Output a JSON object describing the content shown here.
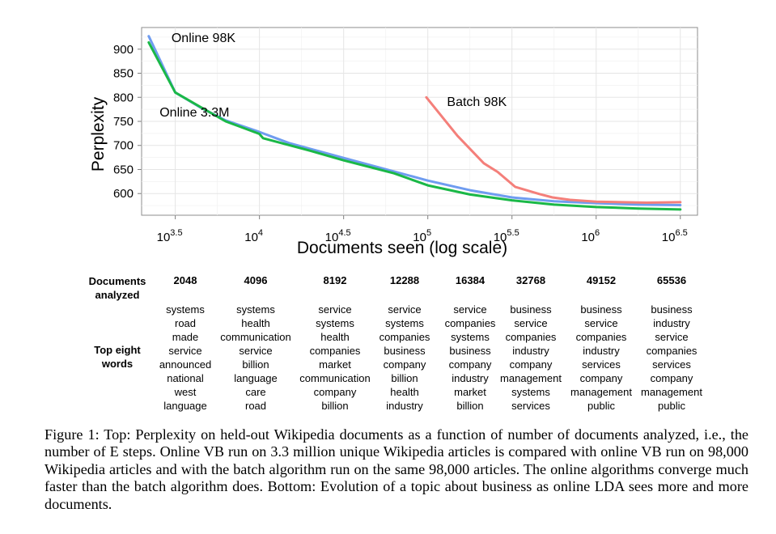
{
  "chart_data": {
    "type": "line",
    "xlabel": "Documents seen (log scale)",
    "ylabel": "Perplexity",
    "x_scale": "log10",
    "xlim": [
      1995,
      4000000
    ],
    "ylim": [
      555,
      945
    ],
    "x_ticks": [
      {
        "value": 3162,
        "base": "10",
        "exp": "3.5"
      },
      {
        "value": 10000,
        "base": "10",
        "exp": "4"
      },
      {
        "value": 31623,
        "base": "10",
        "exp": "4.5"
      },
      {
        "value": 100000,
        "base": "10",
        "exp": "5"
      },
      {
        "value": 316228,
        "base": "10",
        "exp": "5.5"
      },
      {
        "value": 1000000,
        "base": "10",
        "exp": "6"
      },
      {
        "value": 3162278,
        "base": "10",
        "exp": "6.5"
      }
    ],
    "y_ticks": [
      600,
      650,
      700,
      750,
      800,
      850,
      900
    ],
    "grid": true,
    "series": [
      {
        "name": "Online 98K",
        "color": "#6f9cf0",
        "x": [
          2200,
          3162,
          4500,
          6300,
          10000,
          15000,
          31623,
          63000,
          100000,
          178000,
          316228,
          562000,
          1000000,
          1778000,
          3162278
        ],
        "y": [
          927,
          810,
          778,
          752,
          728,
          705,
          674,
          646,
          627,
          607,
          592,
          584,
          580,
          577,
          576
        ]
      },
      {
        "name": "Online 3.3M",
        "color": "#1ab847",
        "x": [
          2200,
          3162,
          4500,
          6300,
          10000,
          10500,
          20000,
          31623,
          63000,
          100000,
          178000,
          316228,
          562000,
          1000000,
          1778000,
          3162278
        ],
        "y": [
          914,
          810,
          779,
          750,
          724,
          715,
          689,
          669,
          642,
          617,
          598,
          586,
          577,
          572,
          569,
          567
        ]
      },
      {
        "name": "Batch 98K",
        "color": "#f47f7a",
        "x": [
          98000,
          150000,
          215000,
          260000,
          330000,
          460000,
          550000,
          700000,
          1000000,
          2000000,
          3162278
        ],
        "y": [
          800,
          720,
          663,
          645,
          614,
          599,
          592,
          587,
          583,
          581,
          582
        ]
      }
    ],
    "annotations": [
      {
        "text": "Online 98K",
        "series": "Online 98K"
      },
      {
        "text": "Online 3.3M",
        "series": "Online 3.3M"
      },
      {
        "text": "Batch 98K",
        "series": "Batch 98K"
      }
    ]
  },
  "table": {
    "docs_label": [
      "Documents",
      "analyzed"
    ],
    "words_label": [
      "Top eight",
      "words"
    ],
    "columns": [
      {
        "docs": "2048",
        "words": [
          "systems",
          "road",
          "made",
          "service",
          "announced",
          "national",
          "west",
          "language"
        ]
      },
      {
        "docs": "4096",
        "words": [
          "systems",
          "health",
          "communication",
          "service",
          "billion",
          "language",
          "care",
          "road"
        ]
      },
      {
        "docs": "8192",
        "words": [
          "service",
          "systems",
          "health",
          "companies",
          "market",
          "communication",
          "company",
          "billion"
        ]
      },
      {
        "docs": "12288",
        "words": [
          "service",
          "systems",
          "companies",
          "business",
          "company",
          "billion",
          "health",
          "industry"
        ]
      },
      {
        "docs": "16384",
        "words": [
          "service",
          "companies",
          "systems",
          "business",
          "company",
          "industry",
          "market",
          "billion"
        ]
      },
      {
        "docs": "32768",
        "words": [
          "business",
          "service",
          "companies",
          "industry",
          "company",
          "management",
          "systems",
          "services"
        ]
      },
      {
        "docs": "49152",
        "words": [
          "business",
          "service",
          "companies",
          "industry",
          "services",
          "company",
          "management",
          "public"
        ]
      },
      {
        "docs": "65536",
        "words": [
          "business",
          "industry",
          "service",
          "companies",
          "services",
          "company",
          "management",
          "public"
        ]
      }
    ]
  },
  "caption": {
    "text": "Figure 1: Top: Perplexity on held-out Wikipedia documents as a function of number of documents analyzed, i.e., the number of E steps. Online VB run on 3.3 million unique Wikipedia articles is compared with online VB run on 98,000 Wikipedia articles and with the batch algorithm run on the same 98,000 articles. The online algorithms converge much faster than the batch algorithm does. Bottom: Evolution of a topic about business as online LDA sees more and more documents."
  }
}
